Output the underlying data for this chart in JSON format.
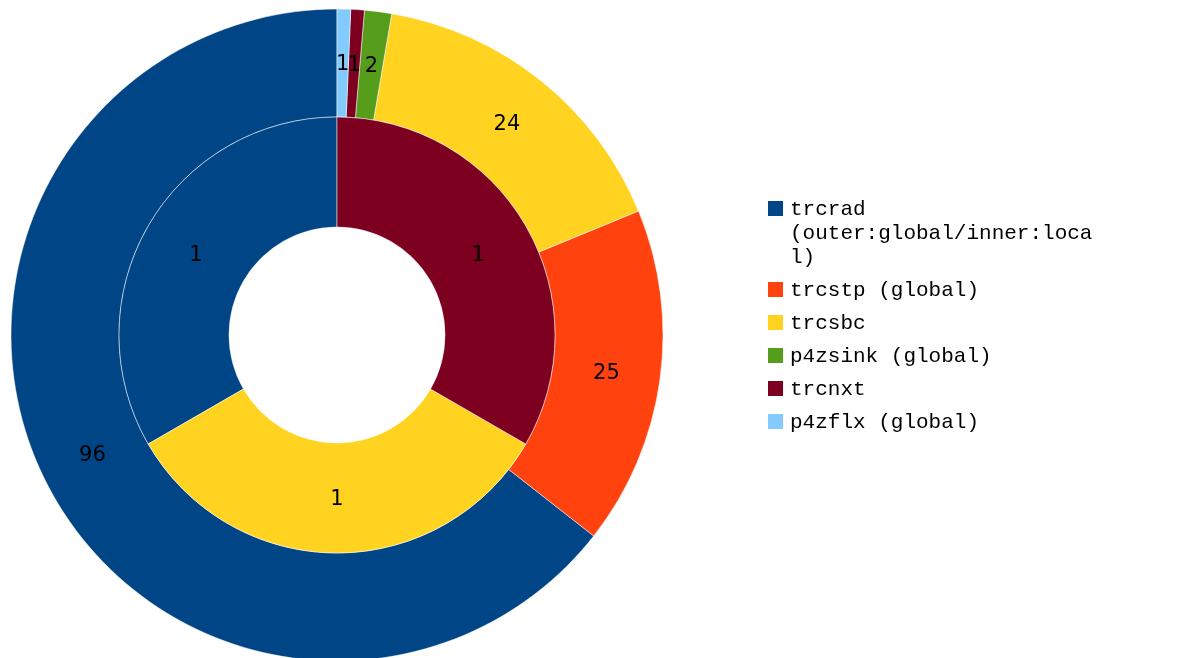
{
  "chart_data": {
    "type": "donut",
    "categories": [
      "trcrad (outer:global/inner:local)",
      "trcstp (global)",
      "trcsbc",
      "p4zsink (global)",
      "trcnxt",
      "p4zflx (global)"
    ],
    "colors": [
      "#004586",
      "#ff420e",
      "#ffd320",
      "#579d1c",
      "#7e0021",
      "#83caff"
    ],
    "series": [
      {
        "values": [
          96,
          25,
          24,
          2,
          1,
          1
        ]
      },
      {
        "values": [
          1,
          null,
          1,
          null,
          1,
          null
        ]
      }
    ],
    "data_labels": true,
    "legend": "right"
  }
}
